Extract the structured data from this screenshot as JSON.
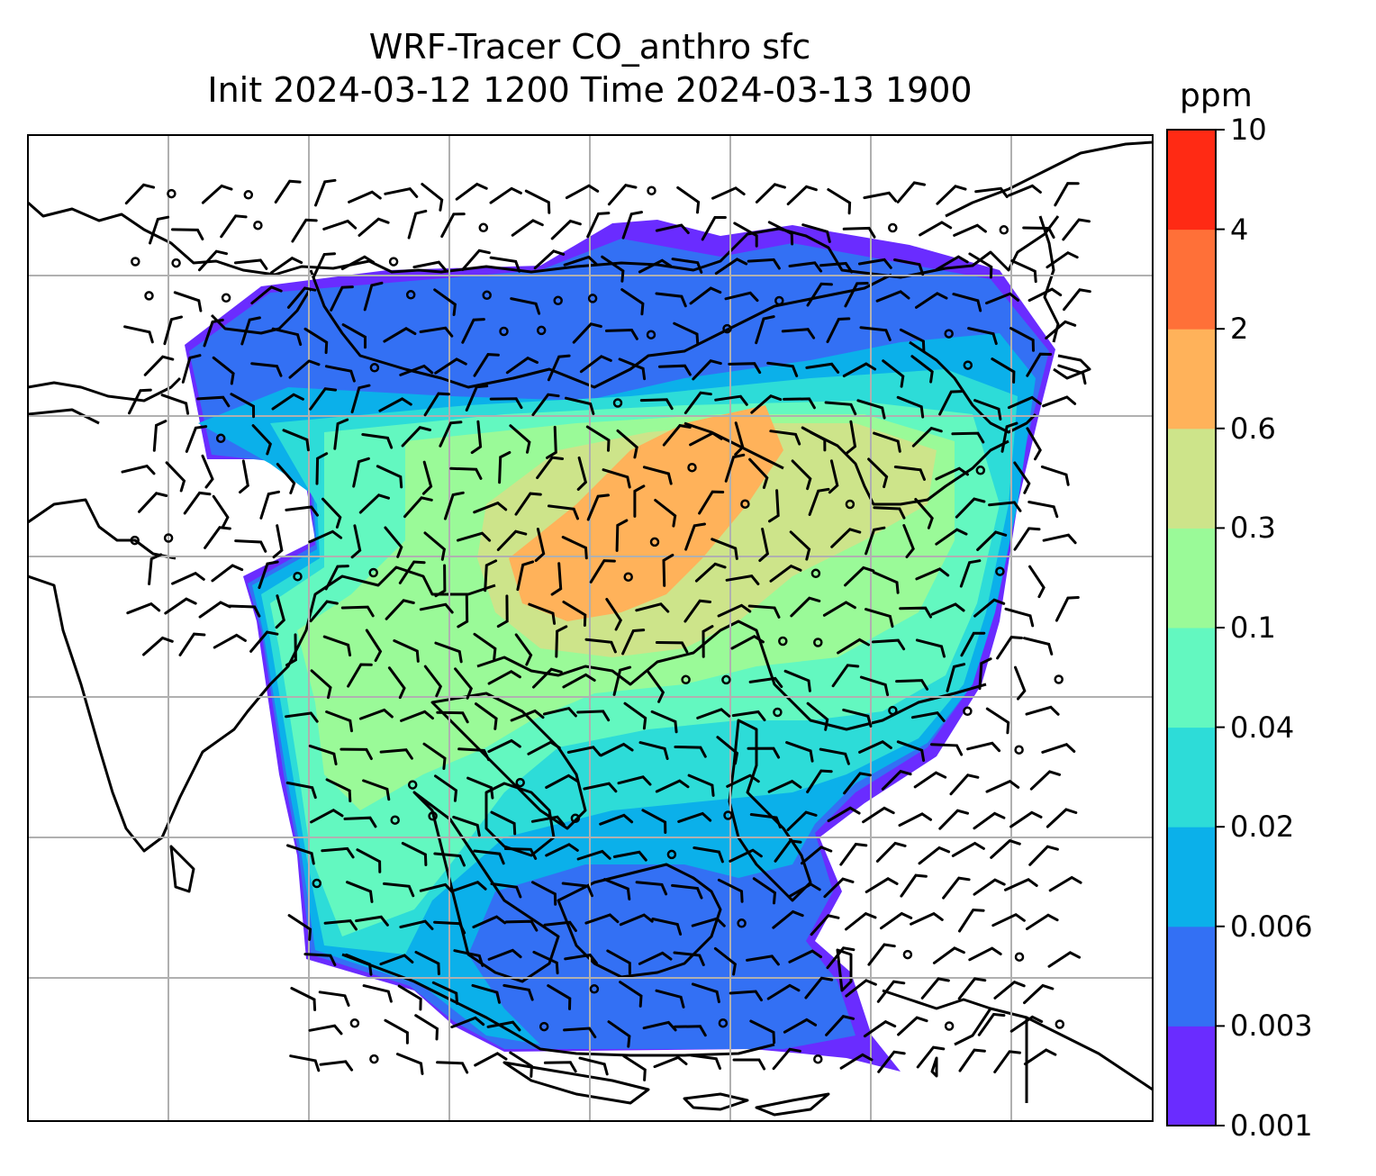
{
  "title_line1": "WRF-Tracer CO_anthro sfc",
  "title_line2": "Init 2024-03-12 1200 Time 2024-03-13 1900",
  "colorbar": {
    "unit": "ppm",
    "levels": [
      "0.001",
      "0.003",
      "0.006",
      "0.02",
      "0.04",
      "0.1",
      "0.3",
      "0.6",
      "2",
      "4",
      "10"
    ],
    "colors": [
      "#6a2cff",
      "#3370f4",
      "#0bb0ea",
      "#2ddcd8",
      "#63f8c0",
      "#9afa98",
      "#cde48a",
      "#ffb25a",
      "#ff7038",
      "#ff2a14"
    ]
  },
  "map": {
    "gridlines": true,
    "overlays": [
      "coastlines",
      "country-borders",
      "wind-barbs",
      "calm-wind-circles"
    ]
  }
}
